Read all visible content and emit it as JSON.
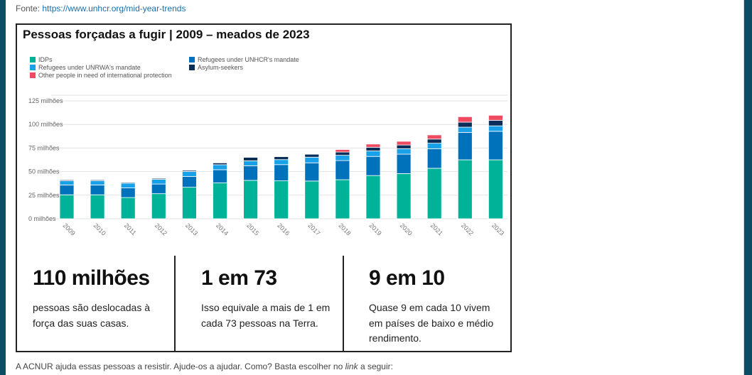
{
  "source": {
    "label": "Fonte:",
    "link": "https://www.unhcr.org/mid-year-trends"
  },
  "chart_data": {
    "type": "bar",
    "stacked": true,
    "title": "Pessoas forçadas a fugir | 2009 – meados de 2023",
    "xlabel": "",
    "ylabel": "",
    "ylim": [
      0,
      125
    ],
    "yticks": [
      0,
      25,
      50,
      75,
      100,
      125
    ],
    "ytick_labels": [
      "0 milhões",
      "25 milhões",
      "50 milhões",
      "75 milhões",
      "100 milhões",
      "125 milhões"
    ],
    "grid": true,
    "legend_placement": "top-left",
    "categories": [
      "2009",
      "2010",
      "2011",
      "2012",
      "2013",
      "2014",
      "2015",
      "2016",
      "2017",
      "2018",
      "2019",
      "2020",
      "2021",
      "2022",
      "2023"
    ],
    "series": [
      {
        "name": "IDPs",
        "color": "#00b398",
        "values": [
          25.4,
          25.4,
          22.5,
          26.6,
          33.4,
          38.0,
          40.7,
          40.2,
          40.0,
          41.4,
          45.8,
          47.9,
          53.5,
          62.5,
          62.5
        ]
      },
      {
        "name": "Refugees under UNHCR's mandate",
        "color": "#0072bc",
        "values": [
          10.4,
          10.4,
          10.2,
          10.2,
          11.4,
          14.0,
          15.5,
          17.2,
          19.3,
          20.3,
          20.3,
          20.6,
          20.8,
          29.0,
          30.2
        ]
      },
      {
        "name": "Refugees under UNRWA's mandate",
        "color": "#18a0e8",
        "values": [
          4.4,
          4.4,
          5.0,
          5.0,
          5.3,
          5.3,
          5.3,
          5.3,
          6.0,
          5.6,
          5.8,
          5.8,
          5.8,
          5.6,
          5.8
        ]
      },
      {
        "name": "Asylum-seekers",
        "color": "#0a2e57",
        "values": [
          1.0,
          1.0,
          0.9,
          1.0,
          1.2,
          1.9,
          3.6,
          3.1,
          3.1,
          3.4,
          3.9,
          3.9,
          4.4,
          5.3,
          5.9
        ]
      },
      {
        "name": "Other people in need of international protection",
        "color": "#ef4a60",
        "values": [
          0,
          0,
          0,
          0,
          0,
          0,
          0,
          0,
          0,
          2.7,
          3.4,
          3.9,
          4.4,
          5.8,
          5.3
        ]
      }
    ]
  },
  "stats": [
    {
      "big": "110 milhões",
      "text": "pessoas são deslocadas à força das suas casas."
    },
    {
      "big": "1 em 73",
      "text": "Isso equivale a mais de 1 em cada 73 pessoas na Terra."
    },
    {
      "big": "9 em 10",
      "text": "Quase 9 em cada 10 vivem em países de baixo e médio rendimento."
    }
  ],
  "footer": {
    "before": "A ACNUR ajuda essas pessoas a resistir. Ajude-os a ajudar. Como? Basta escolher no ",
    "link_word": "link",
    "after": " a seguir:"
  },
  "colors": {
    "page_edge": "#0b4d63",
    "link": "#1a6fa8"
  }
}
